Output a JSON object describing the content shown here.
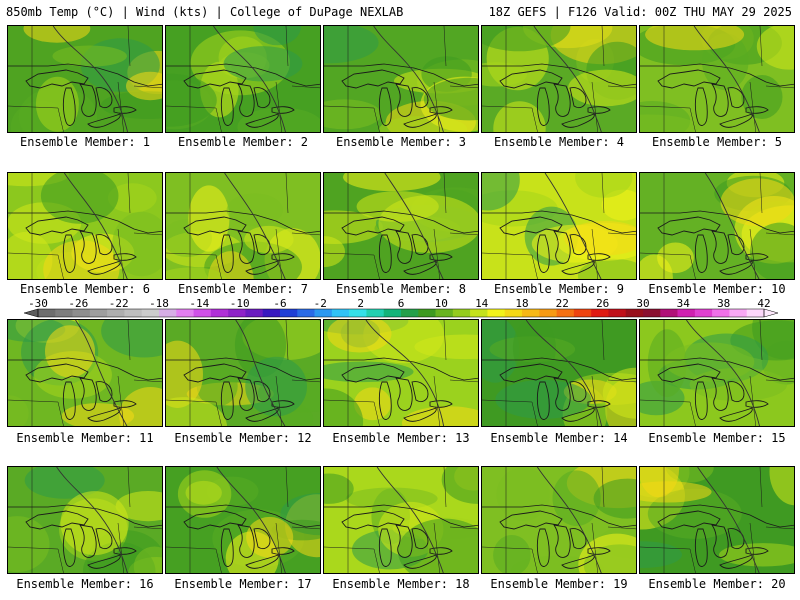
{
  "header": {
    "left": "850mb Temp (°C) | Wind (kts) | College of DuPage NEXLAB",
    "right": "18Z GEFS | F126 Valid: 00Z THU MAY 29 2025"
  },
  "members": [
    {
      "label": "Ensemble Member: 1",
      "tone": "#4fa321"
    },
    {
      "label": "Ensemble Member: 2",
      "tone": "#46a022"
    },
    {
      "label": "Ensemble Member: 3",
      "tone": "#52a623"
    },
    {
      "label": "Ensemble Member: 4",
      "tone": "#5aaa25"
    },
    {
      "label": "Ensemble Member: 5",
      "tone": "#7fbf22"
    },
    {
      "label": "Ensemble Member: 6",
      "tone": "#8cc81e"
    },
    {
      "label": "Ensemble Member: 7",
      "tone": "#7fbf22"
    },
    {
      "label": "Ensemble Member: 8",
      "tone": "#4fa321"
    },
    {
      "label": "Ensemble Member: 9",
      "tone": "#c8e21a"
    },
    {
      "label": "Ensemble Member: 10",
      "tone": "#64b124"
    },
    {
      "label": "Ensemble Member: 11",
      "tone": "#6fb722"
    },
    {
      "label": "Ensemble Member: 12",
      "tone": "#5aaa25"
    },
    {
      "label": "Ensemble Member: 13",
      "tone": "#9bd21e"
    },
    {
      "label": "Ensemble Member: 14",
      "tone": "#3f9a22"
    },
    {
      "label": "Ensemble Member: 15",
      "tone": "#8cc81e"
    },
    {
      "label": "Ensemble Member: 16",
      "tone": "#5aaa25"
    },
    {
      "label": "Ensemble Member: 17",
      "tone": "#46a022"
    },
    {
      "label": "Ensemble Member: 18",
      "tone": "#aad81c"
    },
    {
      "label": "Ensemble Member: 19",
      "tone": "#7fbf22"
    },
    {
      "label": "Ensemble Member: 20",
      "tone": "#3f9a22"
    }
  ],
  "colorbar": {
    "ticks": [
      "-30",
      "-26",
      "-22",
      "-18",
      "-14",
      "-10",
      "-6",
      "-2",
      "2",
      "6",
      "10",
      "14",
      "18",
      "22",
      "26",
      "30",
      "34",
      "38",
      "42"
    ],
    "colors": [
      "#6e6e6e",
      "#7e7e7e",
      "#8e8e8e",
      "#9e9e9e",
      "#aeaeae",
      "#bebebe",
      "#cccccc",
      "#d7aee6",
      "#e27ef0",
      "#d050e8",
      "#b030d8",
      "#8e22c8",
      "#6a1bc0",
      "#3818c0",
      "#1f3fd6",
      "#2a6ae6",
      "#2c98f0",
      "#30c2f6",
      "#34e0e8",
      "#22d0b0",
      "#14b47a",
      "#24a04a",
      "#3e9a20",
      "#68b41f",
      "#94cc1e",
      "#c4e21c",
      "#f2f21a",
      "#f4d816",
      "#f6b816",
      "#f69a14",
      "#f47012",
      "#ee4410",
      "#e01a12",
      "#c0101a",
      "#98101c",
      "#8a1030",
      "#b01078",
      "#d020b0",
      "#e040d0",
      "#f070e8",
      "#f8a8f4",
      "#fcd6fa"
    ]
  }
}
